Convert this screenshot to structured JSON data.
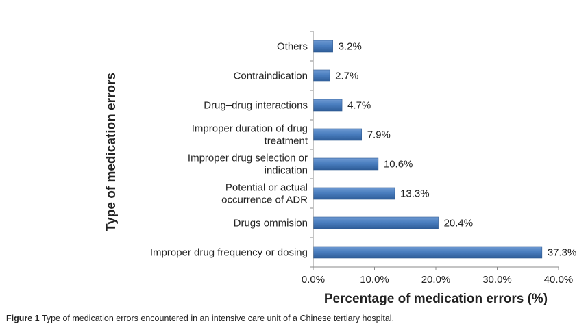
{
  "chart_data": {
    "type": "bar",
    "orientation": "horizontal",
    "categories": [
      "Improper drug frequency or dosing",
      "Drugs ommision",
      "Potential or actual occurrence of ADR",
      "Improper drug selection or indication",
      "Improper duration of drug treatment",
      "Drug–drug interactions",
      "Contraindication",
      "Others"
    ],
    "values": [
      37.3,
      20.4,
      13.3,
      10.6,
      7.9,
      4.7,
      2.7,
      3.2
    ],
    "value_labels": [
      "37.3%",
      "20.4%",
      "13.3%",
      "10.6%",
      "7.9%",
      "4.7%",
      "2.7%",
      "3.2%"
    ],
    "xlabel": "Percentage of medication errors (%)",
    "ylabel": "Type of medication errors",
    "xlim": [
      0,
      40
    ],
    "xticks": [
      "0.0%",
      "10.0%",
      "20.0%",
      "30.0%",
      "40.0%"
    ],
    "grid": false,
    "legend": "none",
    "bar_color": "#4a7ebf"
  },
  "caption": {
    "label": "Figure 1",
    "text": "Type of medication errors encountered in an intensive care unit of a Chinese tertiary hospital."
  }
}
